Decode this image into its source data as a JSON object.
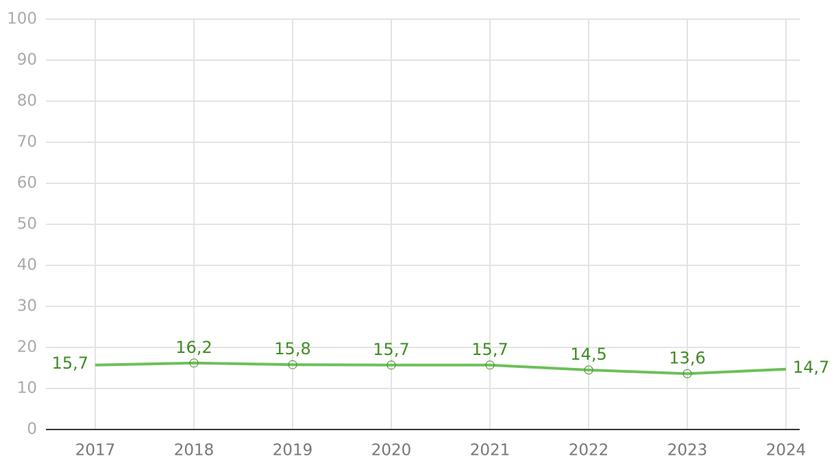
{
  "chart_data": {
    "type": "line",
    "categories": [
      "2017",
      "2018",
      "2019",
      "2020",
      "2021",
      "2022",
      "2023",
      "2024"
    ],
    "series": [
      {
        "color": "#6dbf5a",
        "label_color": "#3f8c24",
        "values": [
          15.7,
          16.2,
          15.8,
          15.7,
          15.7,
          14.5,
          13.6,
          14.7
        ],
        "value_labels": [
          "15,7",
          "16,2",
          "15,8",
          "15,7",
          "15,7",
          "14,5",
          "13,6",
          "14,7"
        ]
      }
    ],
    "ylim": [
      0,
      100
    ],
    "yticks": [
      0,
      10,
      20,
      30,
      40,
      50,
      60,
      70,
      80,
      90,
      100
    ],
    "grid": true
  }
}
